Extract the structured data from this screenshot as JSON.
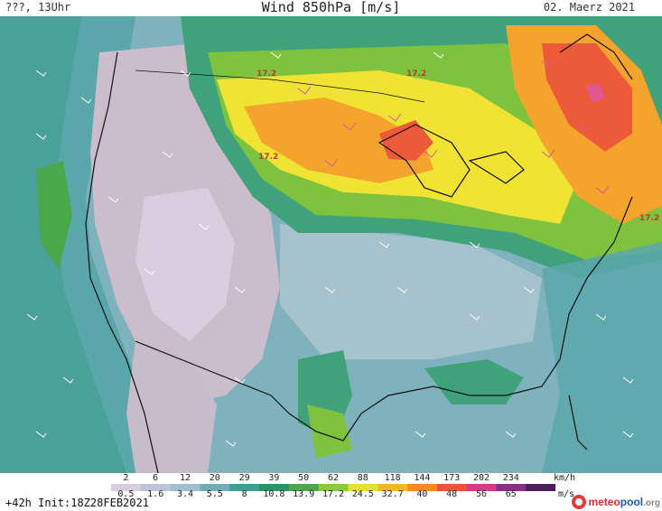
{
  "header": {
    "left": "???, 13Uhr",
    "title": "Wind 850hPa [m/s]",
    "right": "02. Maerz 2021"
  },
  "footer": {
    "run_info": "+42h Init:18Z28FEB2021",
    "brand_a": "meteo",
    "brand_b": "pool",
    "brand_c": ".org"
  },
  "legend": {
    "kmh_unit": "km/h",
    "ms_unit": "m/s",
    "kmh_values": [
      "2",
      "6",
      "12",
      "20",
      "29",
      "39",
      "50",
      "62",
      "88",
      "118",
      "144",
      "173",
      "202",
      "234"
    ],
    "ms_values": [
      "0.5",
      "1.6",
      "3.4",
      "5.5",
      "8",
      "10.8",
      "13.9",
      "17.2",
      "24.5",
      "32.7",
      "40",
      "48",
      "56",
      "65"
    ],
    "colors": [
      "#d8cde0",
      "#bfc3d6",
      "#9fc0cc",
      "#6fb0b8",
      "#3fa090",
      "#2a9468",
      "#49a84a",
      "#8cc83c",
      "#e6e030",
      "#f7b52c",
      "#f28a2a",
      "#e8553a",
      "#d23d85",
      "#8a2e8a",
      "#4a1f5a"
    ]
  },
  "map": {
    "contour_labels": [
      "17.2",
      "17.2",
      "17.2",
      "17.2"
    ],
    "colors": {
      "calm": "#cbbdcc",
      "light": "#93b6c4",
      "moderate": "#5ea6a8",
      "fresh": "#2e9a74",
      "strong": "#7fc23e",
      "yellow": "#f0e334",
      "orange": "#f4a32c",
      "red": "#ec5a3a",
      "pink": "#e0588e"
    }
  }
}
